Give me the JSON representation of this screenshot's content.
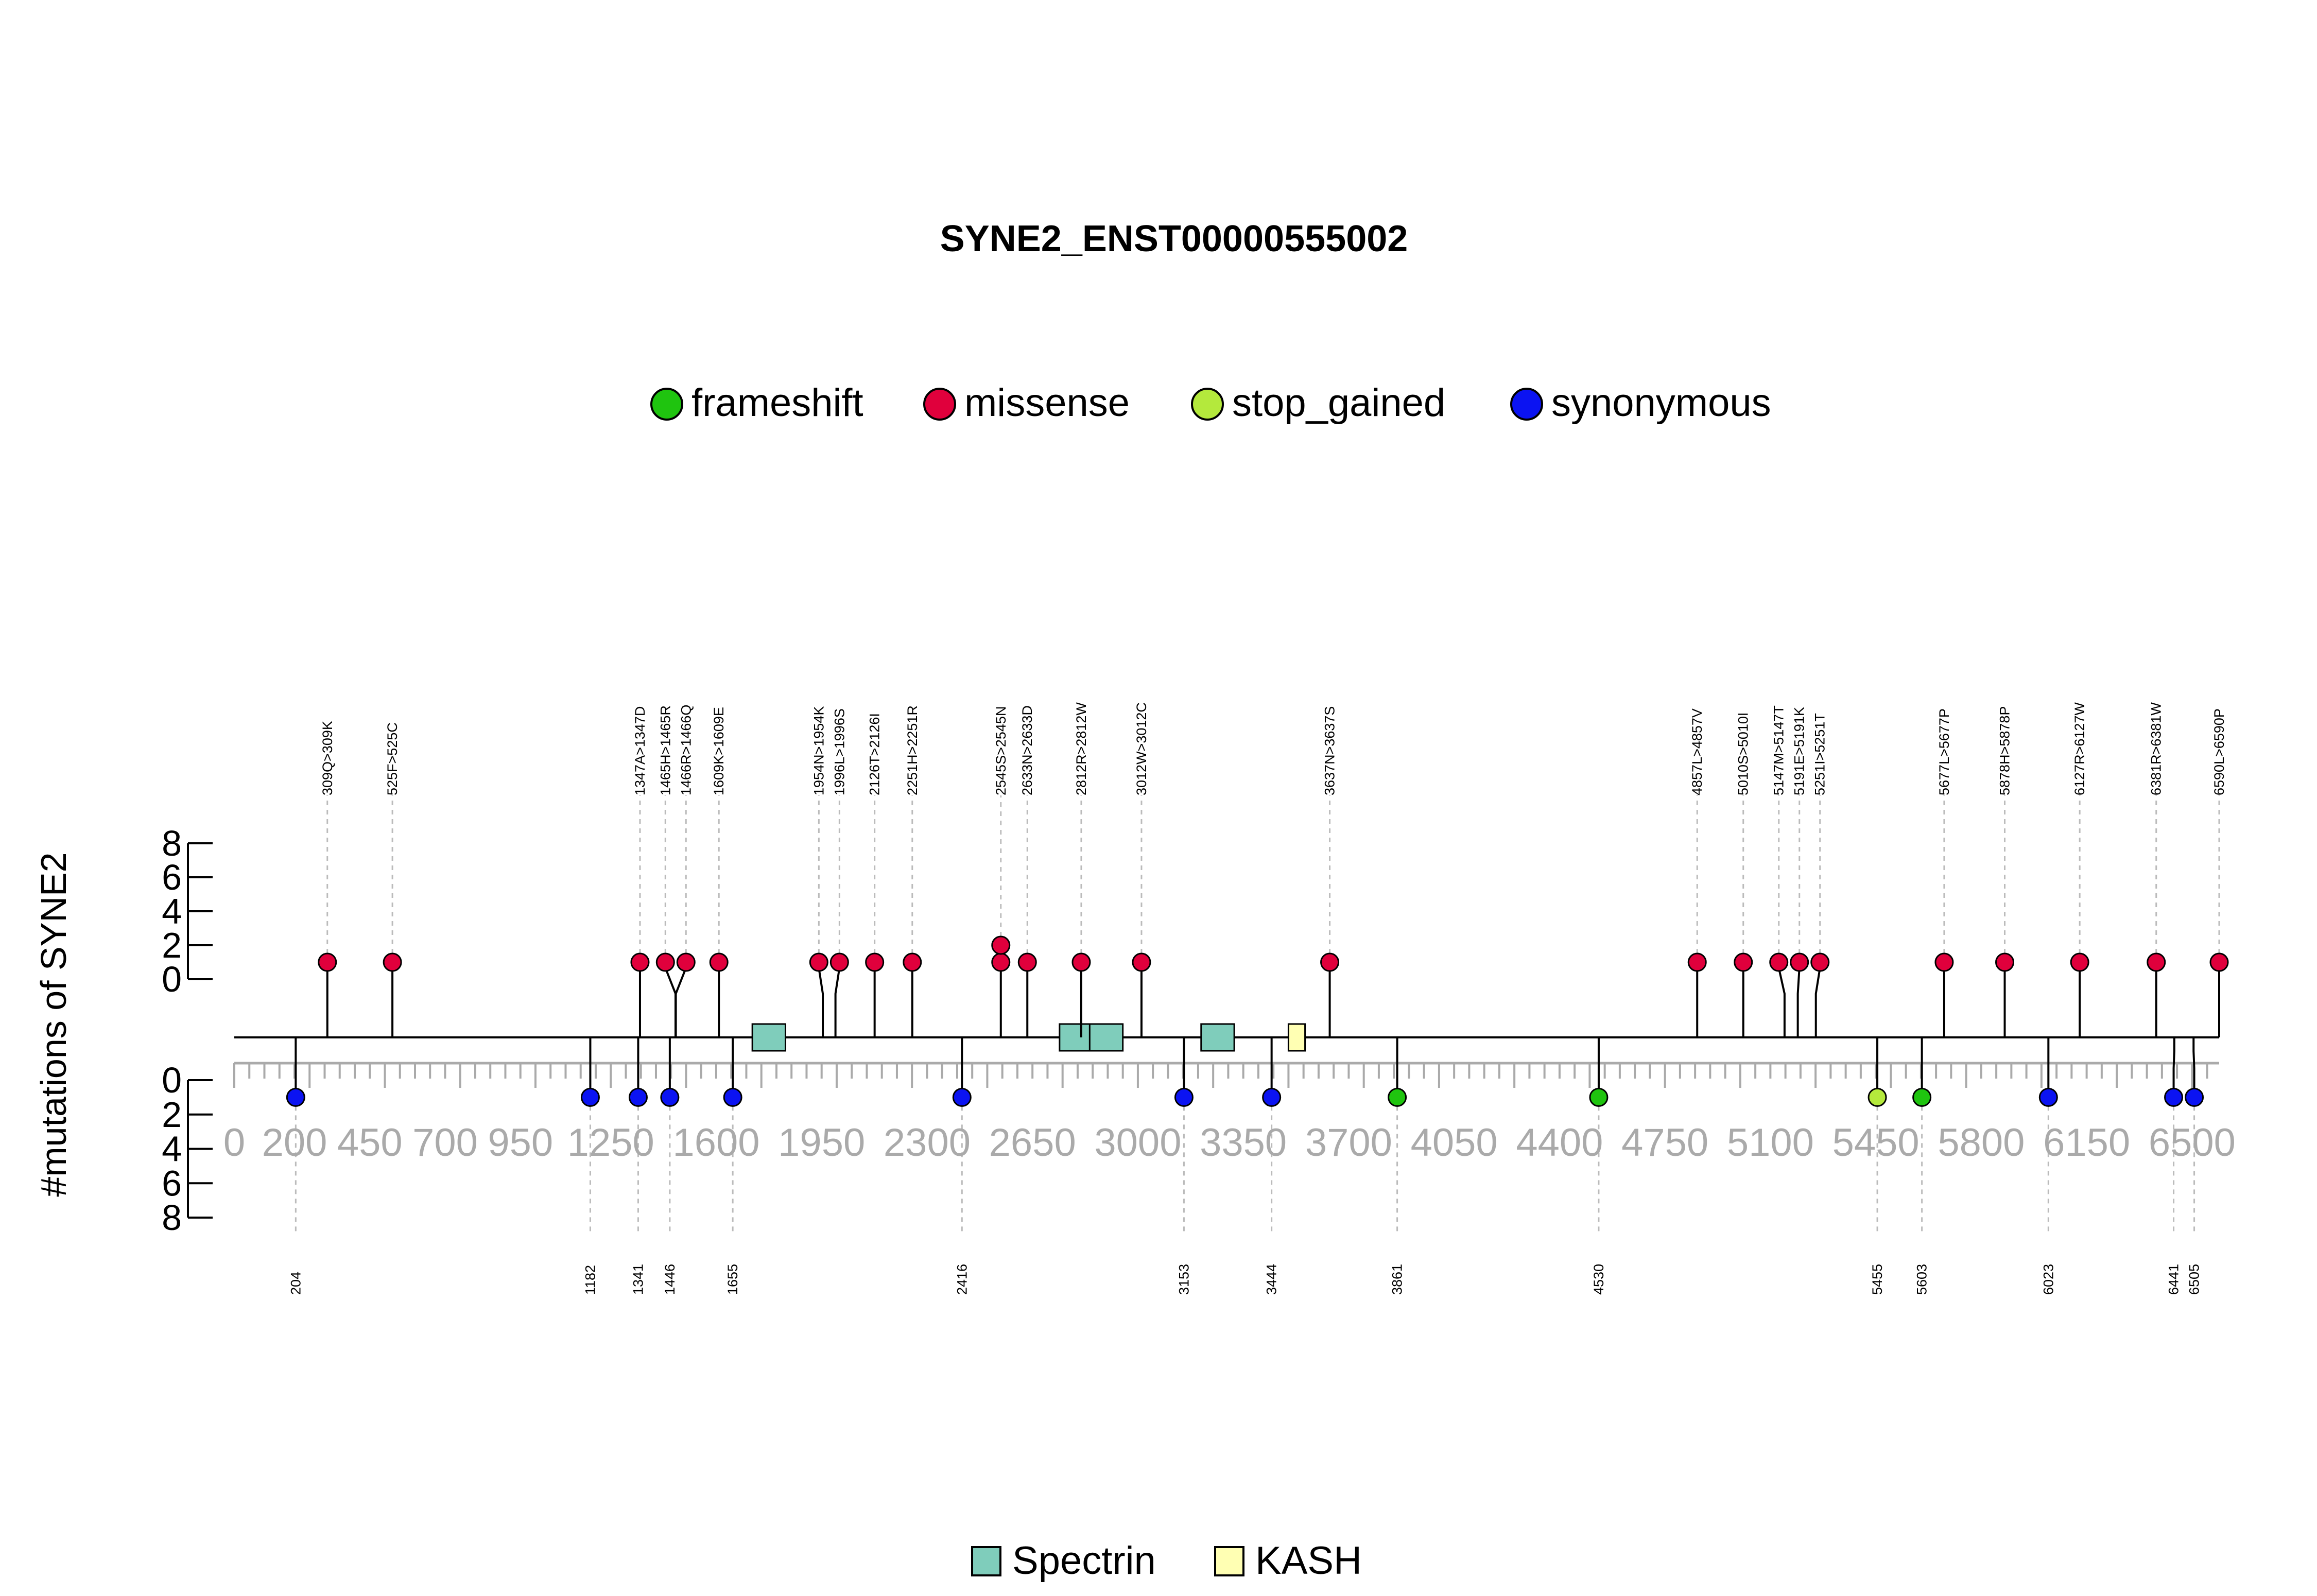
{
  "chart_data": {
    "type": "lollipop",
    "title": "SYNE2_ENST00000555002",
    "ylabel": "#mutations of SYNE2",
    "protein_length": 6590,
    "xlim": [
      0,
      6590
    ],
    "x_tick_labels": [
      0,
      200,
      450,
      700,
      950,
      1250,
      1600,
      1950,
      2300,
      2650,
      3000,
      3350,
      3700,
      4050,
      4400,
      4750,
      5100,
      5450,
      5800,
      6150,
      6500
    ],
    "upper_ylim": [
      0,
      8
    ],
    "upper_y_ticks": [
      0,
      2,
      4,
      6,
      8
    ],
    "lower_ylim": [
      0,
      8
    ],
    "lower_y_ticks": [
      0,
      2,
      4,
      6,
      8
    ],
    "legend": [
      {
        "name": "frameshift",
        "color": "#1fc40f"
      },
      {
        "name": "missense",
        "color": "#e0003c"
      },
      {
        "name": "stop_gained",
        "color": "#b4e93c"
      },
      {
        "name": "synonymous",
        "color": "#0b13f2"
      }
    ],
    "domain_legend": [
      {
        "name": "Spectrin",
        "color": "#7fcdbb"
      },
      {
        "name": "KASH",
        "color": "#ffffb3"
      }
    ],
    "domains": [
      {
        "name": "Spectrin",
        "start": 1720,
        "end": 1830
      },
      {
        "name": "Spectrin",
        "start": 2740,
        "end": 2850
      },
      {
        "name": "Spectrin",
        "start": 2840,
        "end": 2950
      },
      {
        "name": "Spectrin",
        "start": 3210,
        "end": 3320
      },
      {
        "name": "KASH",
        "start": 3500,
        "end": 3555
      }
    ],
    "upper_mutations": [
      {
        "label": "309Q>309K",
        "position": 309,
        "count": 1,
        "type": "missense"
      },
      {
        "label": "525F>525C",
        "position": 525,
        "count": 1,
        "type": "missense"
      },
      {
        "label": "1347A>1347D",
        "position": 1347,
        "count": 1,
        "type": "missense"
      },
      {
        "label": "1465H>1465R",
        "position": 1465,
        "count": 1,
        "type": "missense"
      },
      {
        "label": "1466R>1466Q",
        "position": 1466,
        "count": 1,
        "type": "missense"
      },
      {
        "label": "1609K>1609E",
        "position": 1609,
        "count": 1,
        "type": "missense"
      },
      {
        "label": "1954N>1954K",
        "position": 1954,
        "count": 1,
        "type": "missense"
      },
      {
        "label": "1996L>1996S",
        "position": 1996,
        "count": 1,
        "type": "missense"
      },
      {
        "label": "2126T>2126I",
        "position": 2126,
        "count": 1,
        "type": "missense"
      },
      {
        "label": "2251H>2251R",
        "position": 2251,
        "count": 1,
        "type": "missense"
      },
      {
        "label": "2545S>2545N",
        "position": 2545,
        "count": 2,
        "type": "missense"
      },
      {
        "label": "2633N>2633D",
        "position": 2633,
        "count": 1,
        "type": "missense"
      },
      {
        "label": "2812R>2812W",
        "position": 2812,
        "count": 1,
        "type": "missense"
      },
      {
        "label": "3012W>3012C",
        "position": 3012,
        "count": 1,
        "type": "missense"
      },
      {
        "label": "3637N>3637S",
        "position": 3637,
        "count": 1,
        "type": "missense"
      },
      {
        "label": "4857L>4857V",
        "position": 4857,
        "count": 1,
        "type": "missense"
      },
      {
        "label": "5010S>5010I",
        "position": 5010,
        "count": 1,
        "type": "missense"
      },
      {
        "label": "5147M>5147T",
        "position": 5147,
        "count": 1,
        "type": "missense"
      },
      {
        "label": "5191E>5191K",
        "position": 5191,
        "count": 1,
        "type": "missense"
      },
      {
        "label": "5251I>5251T",
        "position": 5251,
        "count": 1,
        "type": "missense"
      },
      {
        "label": "5677L>5677P",
        "position": 5677,
        "count": 1,
        "type": "missense"
      },
      {
        "label": "5878H>5878P",
        "position": 5878,
        "count": 1,
        "type": "missense"
      },
      {
        "label": "6127R>6127W",
        "position": 6127,
        "count": 1,
        "type": "missense"
      },
      {
        "label": "6381R>6381W",
        "position": 6381,
        "count": 1,
        "type": "missense"
      },
      {
        "label": "6590L>6590P",
        "position": 6590,
        "count": 1,
        "type": "missense"
      }
    ],
    "lower_mutations": [
      {
        "label": "204",
        "position": 204,
        "count": 1,
        "type": "synonymous"
      },
      {
        "label": "1182",
        "position": 1182,
        "count": 1,
        "type": "synonymous"
      },
      {
        "label": "1341",
        "position": 1341,
        "count": 1,
        "type": "synonymous"
      },
      {
        "label": "1446",
        "position": 1446,
        "count": 1,
        "type": "synonymous"
      },
      {
        "label": "1655",
        "position": 1655,
        "count": 1,
        "type": "synonymous"
      },
      {
        "label": "2416",
        "position": 2416,
        "count": 1,
        "type": "synonymous"
      },
      {
        "label": "3153",
        "position": 3153,
        "count": 1,
        "type": "synonymous"
      },
      {
        "label": "3444",
        "position": 3444,
        "count": 1,
        "type": "synonymous"
      },
      {
        "label": "3861",
        "position": 3861,
        "count": 1,
        "type": "frameshift"
      },
      {
        "label": "4530",
        "position": 4530,
        "count": 1,
        "type": "frameshift"
      },
      {
        "label": "5455",
        "position": 5455,
        "count": 1,
        "type": "stop_gained"
      },
      {
        "label": "5603",
        "position": 5603,
        "count": 1,
        "type": "frameshift"
      },
      {
        "label": "6023",
        "position": 6023,
        "count": 1,
        "type": "synonymous"
      },
      {
        "label": "6441",
        "position": 6441,
        "count": 1,
        "type": "synonymous"
      },
      {
        "label": "6505",
        "position": 6505,
        "count": 1,
        "type": "synonymous"
      }
    ]
  }
}
